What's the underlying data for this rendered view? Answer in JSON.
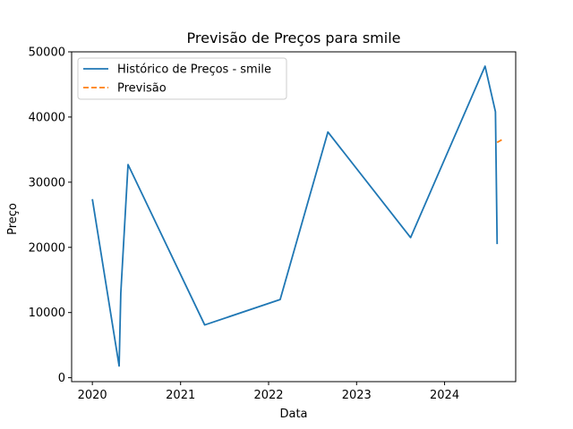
{
  "chart_data": {
    "type": "line",
    "title": "Previsão de Preços para smile",
    "xlabel": "Data",
    "ylabel": "Preço",
    "xlim": [
      "2019-10-07",
      "2024-10-22"
    ],
    "ylim": [
      -600,
      50000
    ],
    "x_ticks": [
      "2020",
      "2021",
      "2022",
      "2023",
      "2024"
    ],
    "y_ticks": [
      "0",
      "10000",
      "20000",
      "30000",
      "40000",
      "50000"
    ],
    "grid": false,
    "legend_position": "top-left",
    "series": [
      {
        "name": "Histórico de Preços - smile",
        "style": "solid",
        "color": "#1f77b4",
        "points": [
          {
            "x": "2020-01-01",
            "y": 27400
          },
          {
            "x": "2020-04-21",
            "y": 1800
          },
          {
            "x": "2020-04-28",
            "y": 13000
          },
          {
            "x": "2020-05-28",
            "y": 32700
          },
          {
            "x": "2021-04-11",
            "y": 8100
          },
          {
            "x": "2022-02-18",
            "y": 12000
          },
          {
            "x": "2022-09-04",
            "y": 37700
          },
          {
            "x": "2023-08-13",
            "y": 21500
          },
          {
            "x": "2024-06-17",
            "y": 47800
          },
          {
            "x": "2024-07-30",
            "y": 40800
          },
          {
            "x": "2024-08-06",
            "y": 20500
          }
        ]
      },
      {
        "name": "Previsão",
        "style": "dashed",
        "color": "#ff7f0e",
        "points": [
          {
            "x": "2024-08-06",
            "y": 36100
          },
          {
            "x": "2024-08-25",
            "y": 36500
          }
        ]
      }
    ]
  }
}
